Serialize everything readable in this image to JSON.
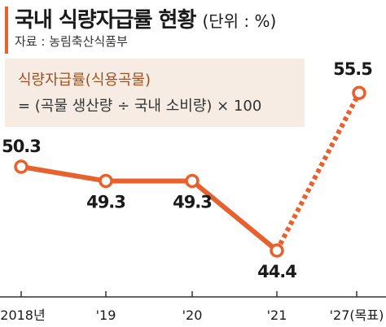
{
  "header": {
    "title": "국내 식량자급률 현황",
    "unit": "(단위 : %)",
    "source": "자료 : 농림축산식품부"
  },
  "formula": {
    "line1": "식량자급률(식용곡물)",
    "line2": "= (곡물 생산량 ÷ 국내 소비량) × 100"
  },
  "colors": {
    "accent": "#e8612c",
    "formula_bg": "#f6ece3",
    "formula_text": "#a0501f"
  },
  "chart_data": {
    "type": "line",
    "categories": [
      "2018년",
      "'19",
      "'20",
      "'21",
      "'27(목표)"
    ],
    "values": [
      50.3,
      49.3,
      49.3,
      44.4,
      55.5
    ],
    "value_labels": [
      "50.3",
      "49.3",
      "49.3",
      "44.4",
      "55.5"
    ],
    "dashed_from_index": 3,
    "title": "국내 식량자급률 현황",
    "xlabel": "",
    "ylabel": "",
    "grid": false,
    "line_style": "solid line to '21, dotted line to '27 target",
    "marker": "white circle with orange outline"
  }
}
